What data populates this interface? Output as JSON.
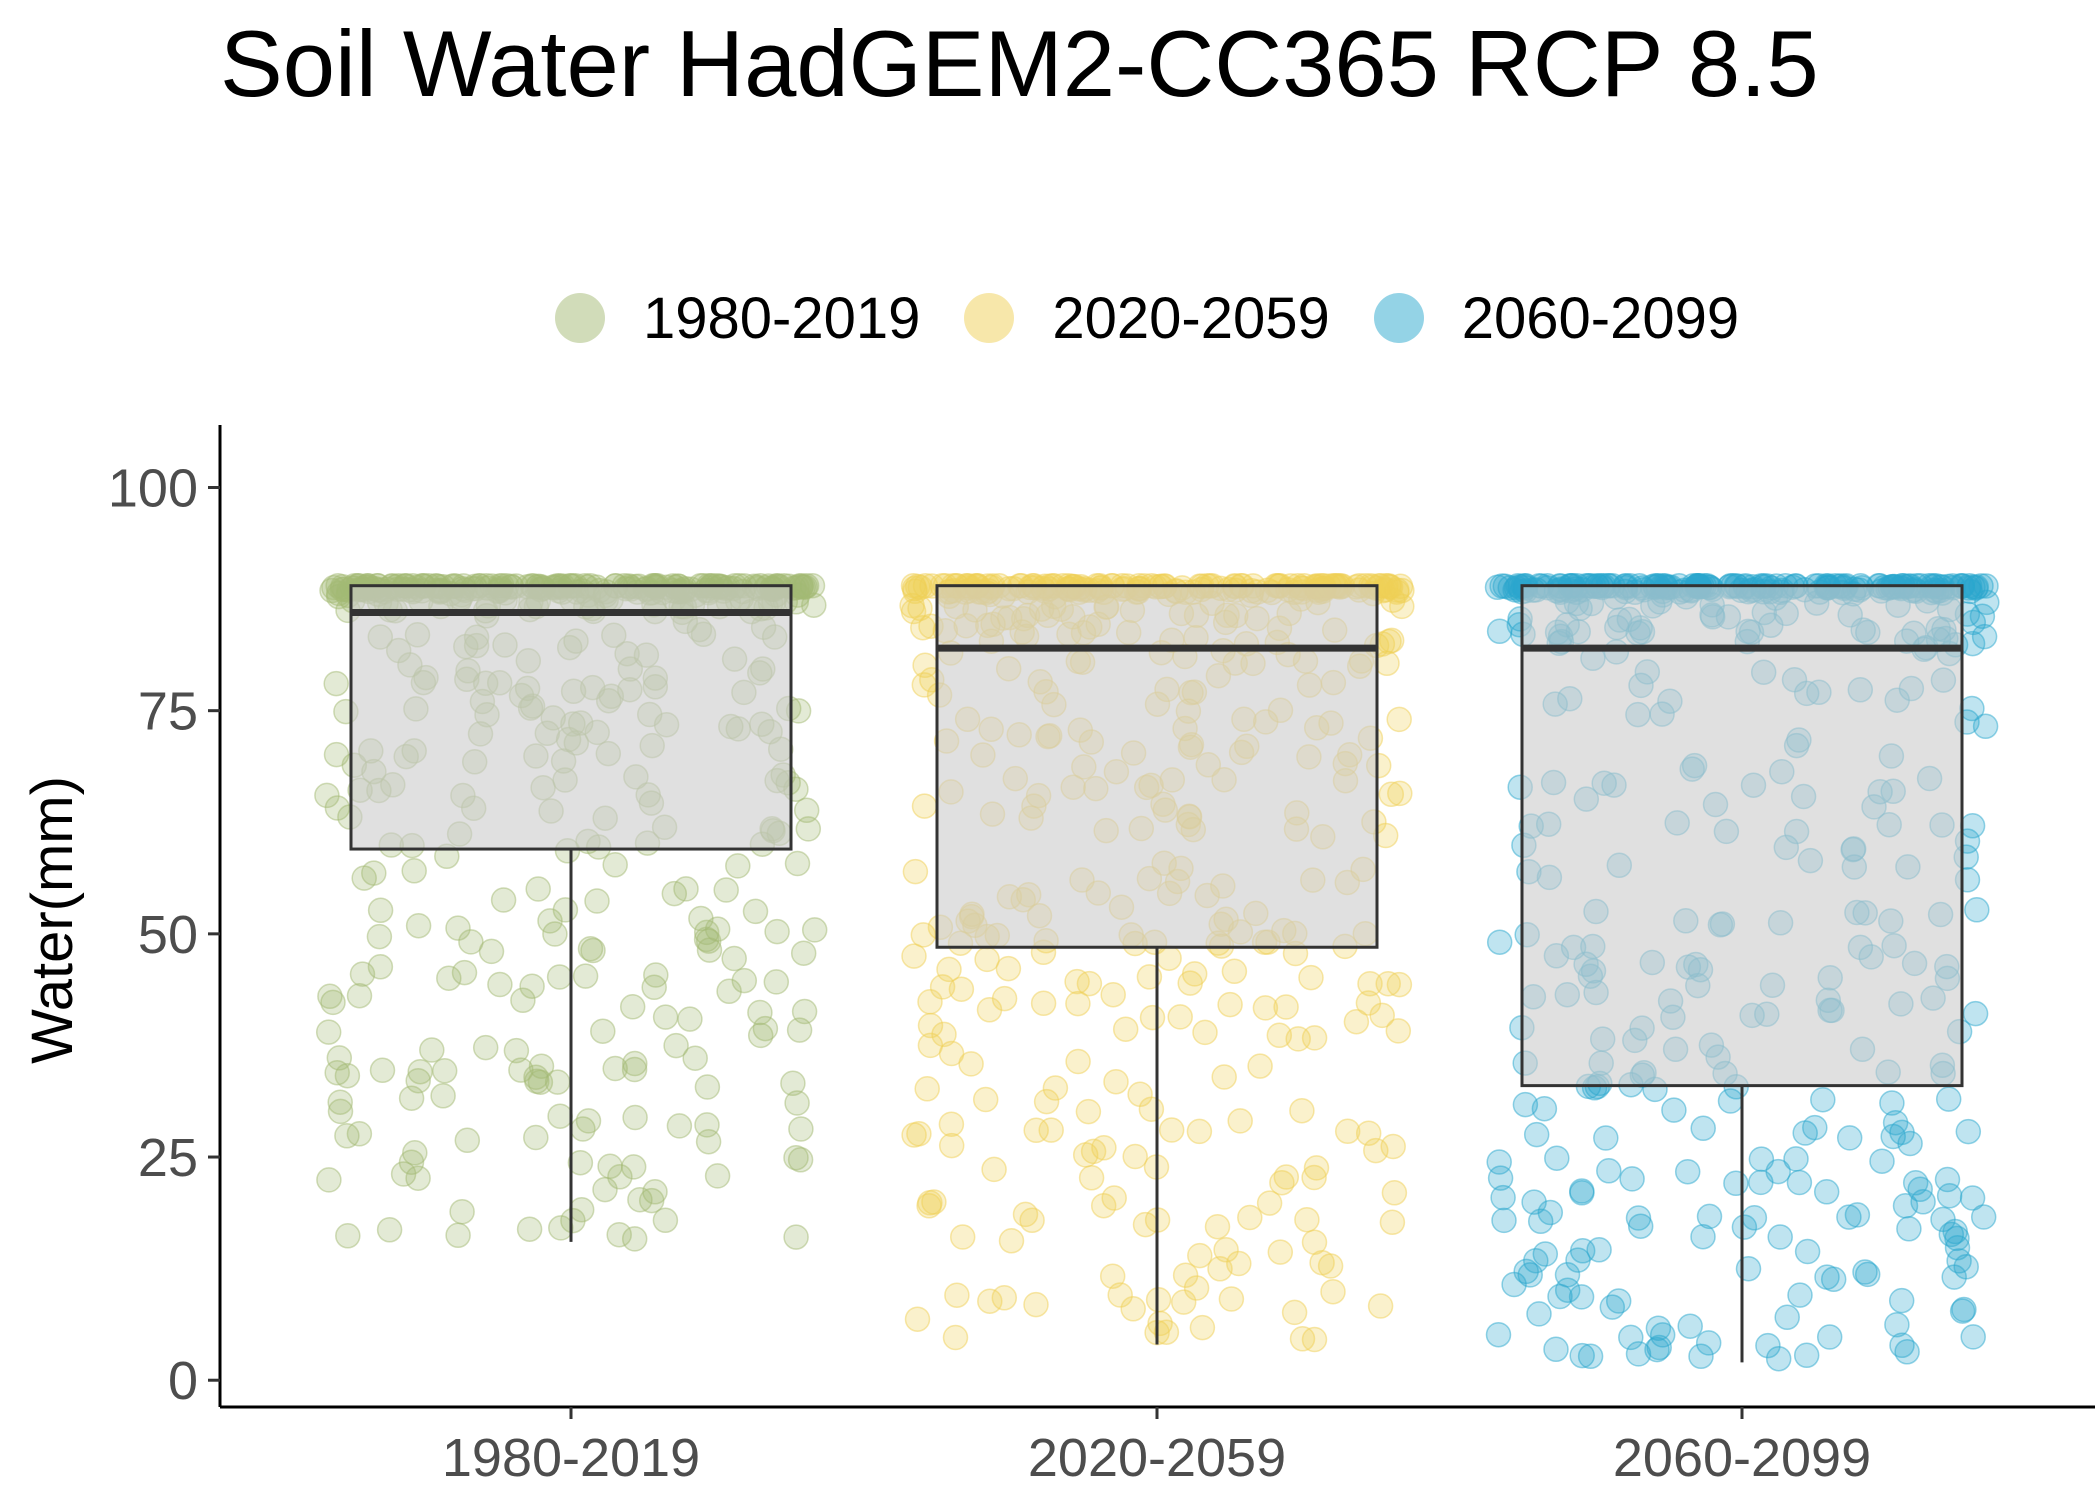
{
  "chart_data": {
    "type": "box",
    "title": "Soil Water HadGEM2-CC365 RCP 8.5",
    "ylabel": "Water(mm)",
    "ylim": [
      -3,
      107
    ],
    "yticks": [
      "0",
      "25",
      "50",
      "75",
      "100"
    ],
    "ytick_values": [
      0,
      25,
      50,
      75,
      100
    ],
    "categories": [
      "1980-2019",
      "2020-2059",
      "2060-2099"
    ],
    "legend": {
      "position": "top",
      "entries": [
        "1980-2019",
        "2020-2059",
        "2060-2099"
      ]
    },
    "colors": {
      "1980-2019": "#A3BA73",
      "2020-2059": "#F0CF55",
      "2060-2099": "#2AA7CD"
    },
    "boxes": [
      {
        "name": "1980-2019",
        "whisker_low": 15.5,
        "q1": 59.5,
        "median": 86,
        "q3": 89,
        "whisker_high": 89
      },
      {
        "name": "2020-2059",
        "whisker_low": 4,
        "q1": 48.5,
        "median": 82,
        "q3": 89,
        "whisker_high": 89
      },
      {
        "name": "2060-2099",
        "whisker_low": 2,
        "q1": 33,
        "median": 82,
        "q3": 89,
        "whisker_high": 89
      }
    ],
    "points_per_group": 480,
    "grid": false
  }
}
